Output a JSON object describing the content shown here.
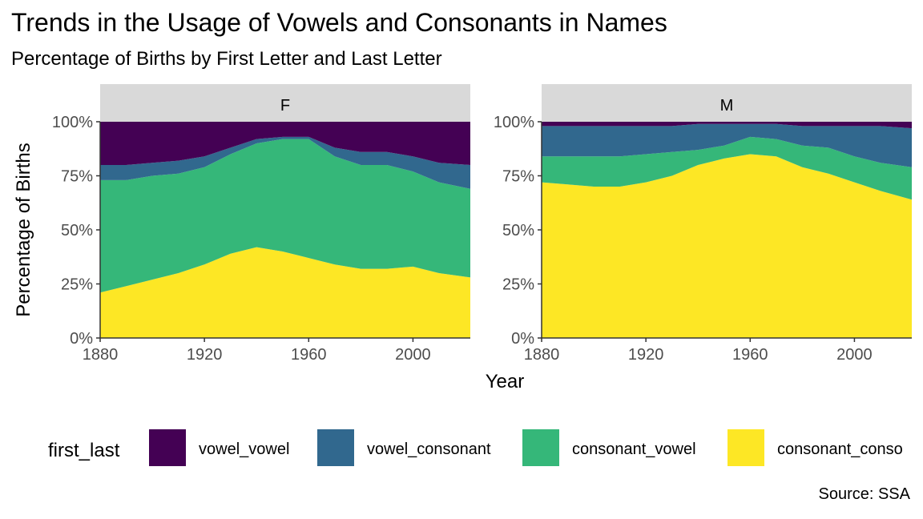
{
  "chart_data": {
    "type": "area",
    "stacked": "fill",
    "title": "Trends in the Usage of Vowels and Consonants in Names",
    "subtitle": "Percentage of Births by First Letter and Last Letter",
    "xlabel": "Year",
    "ylabel": "Percentage of Births",
    "caption": "Source: SSA",
    "xlim": [
      1880,
      2022
    ],
    "ylim": [
      0,
      1
    ],
    "x_ticks": [
      "1880",
      "1920",
      "1960",
      "2000"
    ],
    "y_ticks": [
      "0%",
      "25%",
      "50%",
      "75%",
      "100%"
    ],
    "grid": false,
    "legend": {
      "title": "first_last",
      "position": "bottom",
      "entries": [
        "vowel_vowel",
        "vowel_consonant",
        "consonant_vowel",
        "consonant_conso"
      ]
    },
    "colors": {
      "vowel_vowel": "#440154",
      "vowel_consonant": "#31688E",
      "consonant_vowel": "#35B779",
      "consonant_consonant": "#FDE725"
    },
    "facets": [
      {
        "label": "F",
        "x": [
          1880,
          1890,
          1900,
          1910,
          1920,
          1930,
          1940,
          1950,
          1960,
          1970,
          1980,
          1990,
          2000,
          2010,
          2022
        ],
        "series": [
          {
            "name": "consonant_consonant",
            "values": [
              0.21,
              0.24,
              0.27,
              0.3,
              0.34,
              0.39,
              0.42,
              0.4,
              0.37,
              0.34,
              0.32,
              0.32,
              0.33,
              0.3,
              0.28
            ]
          },
          {
            "name": "consonant_vowel",
            "values": [
              0.52,
              0.49,
              0.48,
              0.46,
              0.45,
              0.46,
              0.48,
              0.52,
              0.55,
              0.5,
              0.48,
              0.48,
              0.44,
              0.42,
              0.41
            ]
          },
          {
            "name": "vowel_consonant",
            "values": [
              0.07,
              0.07,
              0.06,
              0.06,
              0.05,
              0.03,
              0.02,
              0.01,
              0.01,
              0.04,
              0.06,
              0.06,
              0.07,
              0.09,
              0.11
            ]
          },
          {
            "name": "vowel_vowel",
            "values": [
              0.2,
              0.2,
              0.19,
              0.18,
              0.16,
              0.12,
              0.08,
              0.07,
              0.07,
              0.12,
              0.14,
              0.14,
              0.16,
              0.19,
              0.2
            ]
          }
        ]
      },
      {
        "label": "M",
        "x": [
          1880,
          1890,
          1900,
          1910,
          1920,
          1930,
          1940,
          1950,
          1960,
          1970,
          1980,
          1990,
          2000,
          2010,
          2022
        ],
        "series": [
          {
            "name": "consonant_consonant",
            "values": [
              0.72,
              0.71,
              0.7,
              0.7,
              0.72,
              0.75,
              0.8,
              0.83,
              0.85,
              0.84,
              0.79,
              0.76,
              0.72,
              0.68,
              0.64
            ]
          },
          {
            "name": "consonant_vowel",
            "values": [
              0.12,
              0.13,
              0.14,
              0.14,
              0.13,
              0.11,
              0.07,
              0.06,
              0.08,
              0.08,
              0.1,
              0.12,
              0.12,
              0.13,
              0.15
            ]
          },
          {
            "name": "vowel_consonant",
            "values": [
              0.14,
              0.14,
              0.14,
              0.14,
              0.13,
              0.12,
              0.12,
              0.1,
              0.06,
              0.07,
              0.09,
              0.1,
              0.14,
              0.17,
              0.18
            ]
          },
          {
            "name": "vowel_vowel",
            "values": [
              0.02,
              0.02,
              0.02,
              0.02,
              0.02,
              0.02,
              0.01,
              0.01,
              0.01,
              0.01,
              0.02,
              0.02,
              0.02,
              0.02,
              0.03
            ]
          }
        ]
      }
    ]
  }
}
